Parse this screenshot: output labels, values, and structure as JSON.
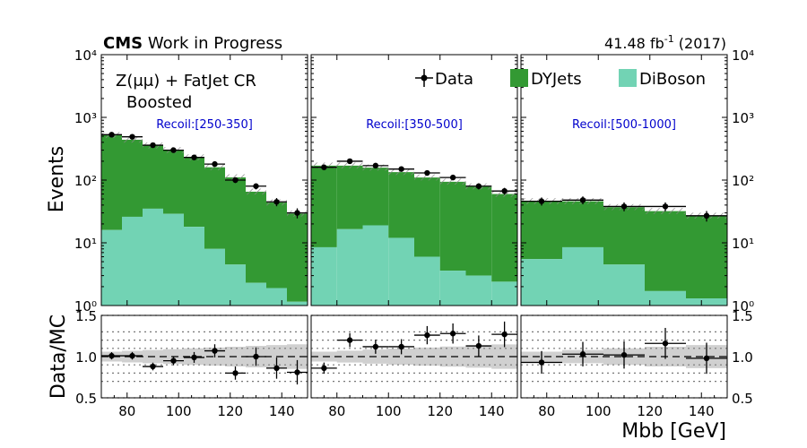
{
  "header": {
    "cms_bold": "CMS",
    "cms_rest": "Work in Progress",
    "lumi_value": "41.48 fb",
    "lumi_exp": "-1",
    "lumi_year": "(2017)"
  },
  "region_label_line1": "Z(μμ) + FatJet CR",
  "region_label_line2": "Boosted",
  "legend": {
    "data": "Data",
    "dyjets": "DYJets",
    "diboson": "DiBoson"
  },
  "colors": {
    "dyjets": "#339933",
    "diboson": "#72d3b4",
    "data": "#000000",
    "recoil_text": "#0000cc",
    "band": "#c8c8c8"
  },
  "axes": {
    "ylabel_top": "Events",
    "ylabel_bottom": "Data/MC",
    "xlabel": "Mbb [GeV]",
    "top_ticks": [
      "10⁰",
      "10¹",
      "10²",
      "10³",
      "10⁴"
    ],
    "ratio_ticks": [
      "0.5",
      "1.0",
      "1.5"
    ],
    "x_ticks": [
      [
        "80",
        "100",
        "120",
        "140"
      ],
      [
        "80",
        "100",
        "120",
        "140"
      ],
      [
        "80",
        "100",
        "120",
        "140"
      ]
    ]
  },
  "chart_data": {
    "type": "bar",
    "stacked": true,
    "log_y": true,
    "ylim": [
      1,
      10000
    ],
    "ratio_ylim": [
      0.5,
      1.5
    ],
    "xlim": [
      70,
      150
    ],
    "panels": [
      {
        "recoil": "Recoil:[250-350]",
        "bin_edges": [
          70,
          78,
          86,
          94,
          102,
          110,
          118,
          126,
          134,
          142,
          150
        ],
        "series": [
          {
            "name": "DiBoson",
            "values": [
              16,
              26,
              35,
              29,
              18,
              8,
              4.5,
              2.3,
              1.9,
              1.15
            ]
          },
          {
            "name": "DYJets",
            "values": [
              504,
              414,
              320,
              271,
              212,
              152,
              106,
              63,
              42,
              28
            ]
          },
          {
            "name": "Data",
            "x": [
              74,
              82,
              90,
              98,
              106,
              114,
              122,
              130,
              138,
              146
            ],
            "values": [
              530,
              490,
              360,
              300,
              230,
              180,
              100,
              80,
              45,
              30
            ]
          }
        ],
        "ratio": [
          1.01,
          1.01,
          0.88,
          0.95,
          0.99,
          1.07,
          0.8,
          1.0,
          0.86,
          0.81
        ]
      },
      {
        "recoil": "Recoil:[350-500]",
        "bin_edges": [
          70,
          80,
          90,
          100,
          110,
          120,
          130,
          140,
          150
        ],
        "series": [
          {
            "name": "DiBoson",
            "values": [
              8.5,
              16.5,
              19,
              12,
              6,
              3.6,
              3,
              2.4
            ]
          },
          {
            "name": "DYJets",
            "values": [
              161.5,
              153.5,
              139,
              122,
              104,
              90.4,
              76,
              57.6
            ]
          },
          {
            "name": "Data",
            "x": [
              75,
              85,
              95,
              105,
              115,
              125,
              135,
              145
            ],
            "values": [
              160,
              200,
              170,
              150,
              130,
              110,
              80,
              67
            ]
          }
        ],
        "ratio": [
          0.86,
          1.2,
          1.12,
          1.12,
          1.26,
          1.28,
          1.13,
          1.27
        ]
      },
      {
        "recoil": "Recoil:[500-1000]",
        "bin_edges": [
          70,
          86,
          102,
          118,
          134,
          150
        ],
        "series": [
          {
            "name": "DiBoson",
            "values": [
              5.5,
              8.5,
              4.5,
              1.7,
              1.3
            ]
          },
          {
            "name": "DYJets",
            "values": [
              40.5,
              37.5,
              32.5,
              30.3,
              25.7
            ]
          },
          {
            "name": "Data",
            "x": [
              78,
              94,
              110,
              126,
              142
            ],
            "values": [
              46,
              48,
              38,
              38,
              27
            ]
          }
        ],
        "ratio": [
          0.93,
          1.03,
          1.02,
          1.16,
          0.98
        ]
      }
    ]
  }
}
